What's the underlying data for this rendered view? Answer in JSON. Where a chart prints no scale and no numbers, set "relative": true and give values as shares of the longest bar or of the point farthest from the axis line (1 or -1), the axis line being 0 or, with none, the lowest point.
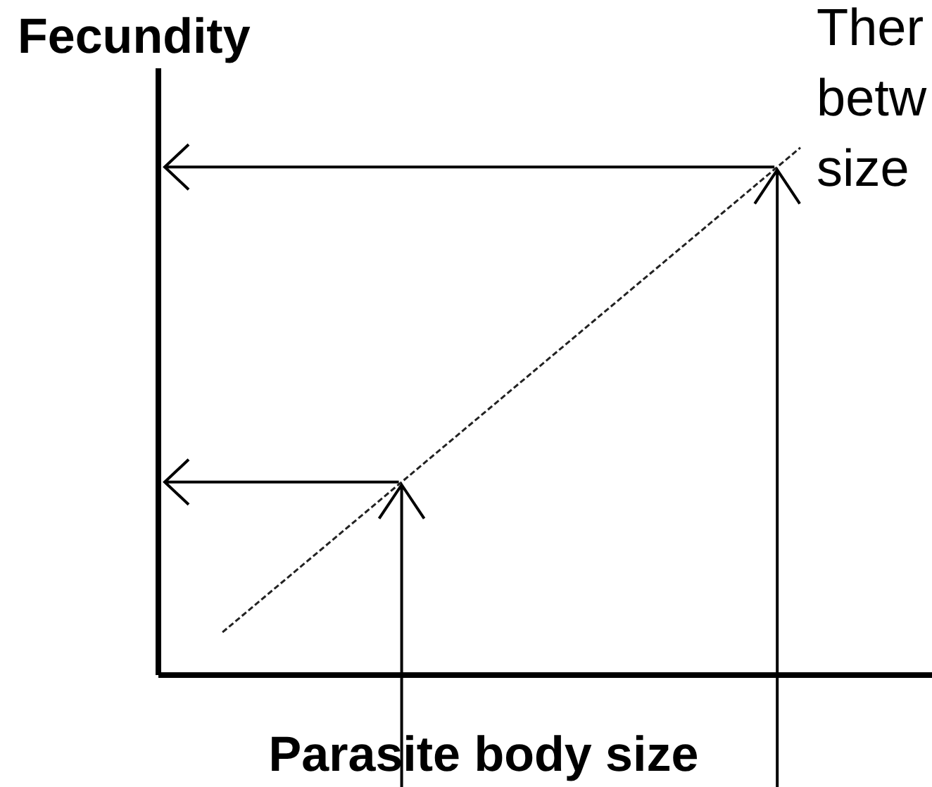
{
  "chart_data": {
    "type": "line",
    "relative": true,
    "xlabel": "Parasite body size",
    "ylabel": "Fecundity",
    "categories": [
      null,
      null
    ],
    "values": [
      0.08,
      1
    ],
    "color": "#222222",
    "line_style": "dashed",
    "annotations": [
      "Ther",
      "betw",
      "size"
    ]
  }
}
